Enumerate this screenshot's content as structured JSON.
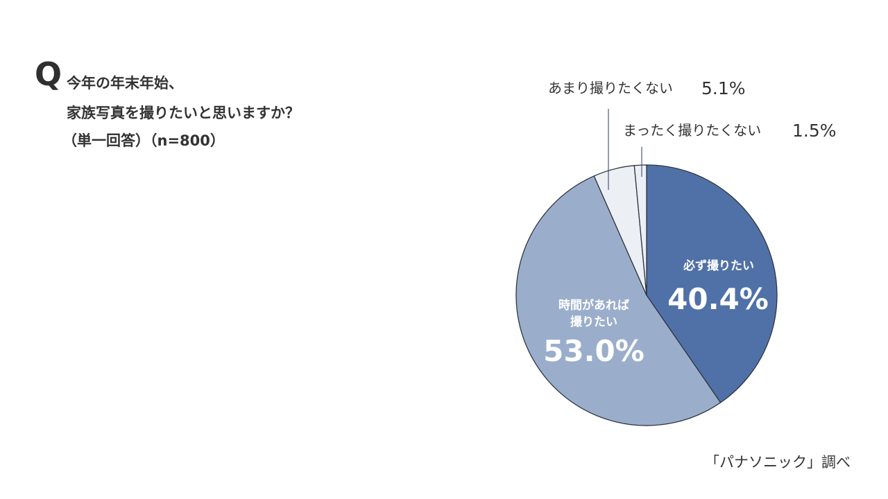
{
  "question": {
    "letter": "Q",
    "line1": "今年の年末年始、",
    "line2": "家族写真を撮りたいと思いますか？",
    "line3": "（単一回答）（n=800）"
  },
  "source": "「パナソニック」調べ",
  "chart_data": {
    "type": "pie",
    "title": "",
    "slices": [
      {
        "label": "必ず撮りたい",
        "value": 40.4,
        "value_label": "40.4%",
        "color": "#5071a7"
      },
      {
        "label": "時間があれば撮りたい",
        "value": 53.0,
        "value_label": "53.0%",
        "color": "#9aaecb"
      },
      {
        "label": "あまり撮りたくない",
        "value": 5.1,
        "value_label": "5.1%",
        "color": "#eceff4"
      },
      {
        "label": "まったく撮りたくない",
        "value": 1.5,
        "value_label": "1.5%",
        "color": "#eceff4"
      }
    ],
    "start_angle": "12 o'clock",
    "direction": "clockwise"
  }
}
